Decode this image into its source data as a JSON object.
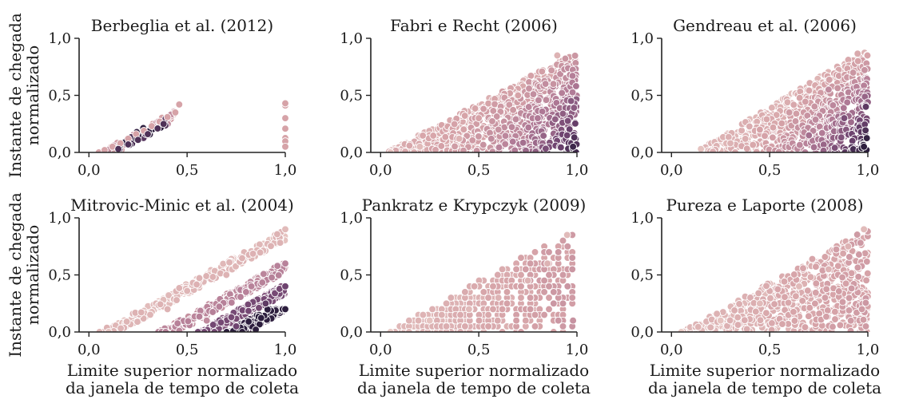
{
  "chart_data": [
    {
      "type": "scatter",
      "title": "Berbeglia et al. (2012)",
      "ylabel": "Instante de chegada normalizado",
      "xlabel": "",
      "x_ticks": [
        "0,0",
        "0,5",
        "1,0"
      ],
      "y_ticks": [
        "0,0",
        "0,5",
        "1,0"
      ],
      "xlim": [
        -0.05,
        1.0
      ],
      "ylim": [
        0,
        1
      ],
      "pattern": "berbeglia",
      "points": [
        {
          "x": 0.05,
          "y": 0.0,
          "h": 0.3
        },
        {
          "x": 0.08,
          "y": 0.02,
          "h": 0.3
        },
        {
          "x": 0.12,
          "y": 0.05,
          "h": 0.3
        },
        {
          "x": 0.16,
          "y": 0.08,
          "h": 0.3
        },
        {
          "x": 0.2,
          "y": 0.12,
          "h": 0.3
        },
        {
          "x": 0.24,
          "y": 0.16,
          "h": 0.3
        },
        {
          "x": 0.28,
          "y": 0.19,
          "h": 0.3
        },
        {
          "x": 0.32,
          "y": 0.23,
          "h": 0.3
        },
        {
          "x": 0.36,
          "y": 0.27,
          "h": 0.3
        },
        {
          "x": 0.4,
          "y": 0.31,
          "h": 0.3
        },
        {
          "x": 0.44,
          "y": 0.35,
          "h": 0.3
        },
        {
          "x": 0.46,
          "y": 0.42,
          "h": 0.3
        },
        {
          "x": 0.15,
          "y": 0.03,
          "h": 0.9
        },
        {
          "x": 0.2,
          "y": 0.07,
          "h": 0.9
        },
        {
          "x": 0.25,
          "y": 0.11,
          "h": 0.9
        },
        {
          "x": 0.3,
          "y": 0.16,
          "h": 0.9
        },
        {
          "x": 0.35,
          "y": 0.21,
          "h": 0.9
        },
        {
          "x": 0.38,
          "y": 0.25,
          "h": 0.9
        },
        {
          "x": 1.0,
          "y": 0.05,
          "h": 0.3
        },
        {
          "x": 1.0,
          "y": 0.3,
          "h": 0.3
        },
        {
          "x": 1.0,
          "y": 0.43,
          "h": 0.3
        }
      ]
    },
    {
      "type": "scatter",
      "title": "Fabri e Recht (2006)",
      "ylabel": "",
      "xlabel": "",
      "x_ticks": [
        "0,0",
        "0,5",
        "1,0"
      ],
      "y_ticks": [
        "0,0",
        "0,5",
        "1,0"
      ],
      "xlim": [
        -0.05,
        1.0
      ],
      "ylim": [
        0,
        1
      ],
      "pattern": "fabri",
      "points": [
        {
          "x": 0.05,
          "y": 0.0,
          "h": 0.1
        },
        {
          "x": 0.2,
          "y": 0.05,
          "h": 0.15
        },
        {
          "x": 0.4,
          "y": 0.12,
          "h": 0.2
        },
        {
          "x": 0.5,
          "y": 0.3,
          "h": 0.3
        },
        {
          "x": 0.6,
          "y": 0.2,
          "h": 0.4
        },
        {
          "x": 0.7,
          "y": 0.5,
          "h": 0.3
        },
        {
          "x": 0.8,
          "y": 0.3,
          "h": 0.55
        },
        {
          "x": 0.88,
          "y": 0.6,
          "h": 0.4
        },
        {
          "x": 0.9,
          "y": 0.85,
          "h": 0.2
        },
        {
          "x": 0.95,
          "y": 0.15,
          "h": 0.8
        },
        {
          "x": 0.98,
          "y": 0.05,
          "h": 0.95
        },
        {
          "x": 0.97,
          "y": 0.45,
          "h": 0.7
        }
      ]
    },
    {
      "type": "scatter",
      "title": "Gendreau et al. (2006)",
      "ylabel": "",
      "xlabel": "",
      "x_ticks": [
        "0,0",
        "0,5",
        "1,0"
      ],
      "y_ticks": [
        "0,0",
        "0,5",
        "1,0"
      ],
      "xlim": [
        -0.05,
        1.0
      ],
      "ylim": [
        0,
        1
      ],
      "pattern": "gendreau",
      "points": [
        {
          "x": 0.15,
          "y": 0.03,
          "h": 0.1
        },
        {
          "x": 0.3,
          "y": 0.08,
          "h": 0.2
        },
        {
          "x": 0.45,
          "y": 0.2,
          "h": 0.3
        },
        {
          "x": 0.6,
          "y": 0.35,
          "h": 0.35
        },
        {
          "x": 0.7,
          "y": 0.15,
          "h": 0.6
        },
        {
          "x": 0.8,
          "y": 0.55,
          "h": 0.45
        },
        {
          "x": 0.88,
          "y": 0.3,
          "h": 0.75
        },
        {
          "x": 0.95,
          "y": 0.8,
          "h": 0.3
        },
        {
          "x": 0.98,
          "y": 0.05,
          "h": 1.0
        },
        {
          "x": 0.99,
          "y": 0.4,
          "h": 0.85
        }
      ]
    },
    {
      "type": "scatter",
      "title": "Mitrovic-Minic et al. (2004)",
      "ylabel": "Instante de chegada normalizado",
      "xlabel": "Limite superior normalizado da janela de tempo de coleta",
      "x_ticks": [
        "0,0",
        "0,5",
        "1,0"
      ],
      "y_ticks": [
        "0,0",
        "0,5",
        "1,0"
      ],
      "xlim": [
        -0.05,
        1.0
      ],
      "ylim": [
        0,
        1
      ],
      "pattern": "mitrovic",
      "points": [
        {
          "x": 0.1,
          "y": 0.0,
          "h": 0.1
        },
        {
          "x": 0.4,
          "y": 0.2,
          "h": 0.2
        },
        {
          "x": 0.7,
          "y": 0.5,
          "h": 0.2
        },
        {
          "x": 1.0,
          "y": 0.9,
          "h": 0.15
        },
        {
          "x": 0.6,
          "y": 0.1,
          "h": 0.45
        },
        {
          "x": 0.8,
          "y": 0.35,
          "h": 0.5
        },
        {
          "x": 1.0,
          "y": 0.6,
          "h": 0.5
        },
        {
          "x": 0.75,
          "y": 0.05,
          "h": 0.8
        },
        {
          "x": 0.9,
          "y": 0.25,
          "h": 0.85
        },
        {
          "x": 1.0,
          "y": 0.4,
          "h": 0.8
        },
        {
          "x": 0.85,
          "y": 0.02,
          "h": 1.0
        },
        {
          "x": 1.0,
          "y": 0.2,
          "h": 1.0
        }
      ]
    },
    {
      "type": "scatter",
      "title": "Pankratz e Krypczyk (2009)",
      "ylabel": "",
      "xlabel": "Limite superior normalizado da janela de tempo de coleta",
      "x_ticks": [
        "0,0",
        "0,5",
        "1,0"
      ],
      "y_ticks": [
        "0,0",
        "0,5",
        "1,0"
      ],
      "xlim": [
        -0.05,
        1.0
      ],
      "ylim": [
        0,
        1
      ],
      "pattern": "pankratz",
      "points": [
        {
          "x": 0.05,
          "y": 0.0,
          "h": 0.05
        },
        {
          "x": 0.25,
          "y": 0.1,
          "h": 0.1
        },
        {
          "x": 0.45,
          "y": 0.2,
          "h": 0.15
        },
        {
          "x": 0.6,
          "y": 0.3,
          "h": 0.2
        },
        {
          "x": 0.75,
          "y": 0.45,
          "h": 0.2
        },
        {
          "x": 0.85,
          "y": 0.6,
          "h": 0.2
        },
        {
          "x": 0.95,
          "y": 0.85,
          "h": 0.15
        },
        {
          "x": 0.98,
          "y": 0.1,
          "h": 0.4
        }
      ]
    },
    {
      "type": "scatter",
      "title": "Pureza e Laporte (2008)",
      "ylabel": "",
      "xlabel": "Limite superior normalizado da janela de tempo de coleta",
      "x_ticks": [
        "0,0",
        "0,5",
        "1,0"
      ],
      "y_ticks": [
        "0,0",
        "0,5",
        "1,0"
      ],
      "xlim": [
        -0.05,
        1.0
      ],
      "ylim": [
        0,
        1
      ],
      "pattern": "pureza",
      "points": [
        {
          "x": 0.05,
          "y": 0.0,
          "h": 0.05
        },
        {
          "x": 0.25,
          "y": 0.1,
          "h": 0.1
        },
        {
          "x": 0.45,
          "y": 0.25,
          "h": 0.15
        },
        {
          "x": 0.65,
          "y": 0.4,
          "h": 0.15
        },
        {
          "x": 0.8,
          "y": 0.55,
          "h": 0.2
        },
        {
          "x": 0.9,
          "y": 0.75,
          "h": 0.2
        },
        {
          "x": 0.98,
          "y": 0.9,
          "h": 0.15
        },
        {
          "x": 0.97,
          "y": 0.2,
          "h": 0.35
        },
        {
          "x": 0.99,
          "y": 0.05,
          "h": 0.35
        }
      ]
    }
  ],
  "colors": {
    "palette_light": "#ecd3cc",
    "palette_mid": "#b07aa1",
    "palette_dark": "#2d1e3e",
    "axis": "#222222",
    "marker_edge": "#ffffff"
  }
}
